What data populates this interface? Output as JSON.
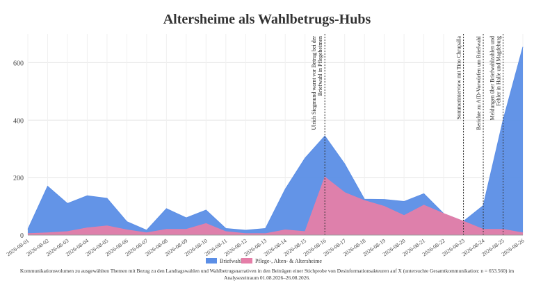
{
  "chart_data": {
    "type": "area",
    "title": "Altersheime als Wahlbetrugs-Hubs",
    "caption": "Kommunikationsvolumen zu ausgewählten Themen mit Bezug zu den Landtagswahlen und Wahlbetrugsnarrativen in den Beiträgen einer Stichprobe von Desinformationsakteuren auf X (untersuchte Gesamtkommunikation: n = 653.560) im Analysezeitraum 01.08.2026–26.08.2026.",
    "x": [
      "2026-08-01",
      "2026-08-02",
      "2026-08-03",
      "2026-08-04",
      "2026-08-05",
      "2026-08-06",
      "2026-08-07",
      "2026-08-08",
      "2026-08-09",
      "2026-08-10",
      "2026-08-11",
      "2026-08-12",
      "2026-08-13",
      "2026-08-14",
      "2026-08-15",
      "2026-08-16",
      "2026-08-17",
      "2026-08-18",
      "2026-08-19",
      "2026-08-20",
      "2026-08-21",
      "2026-08-22",
      "2026-08-23",
      "2026-08-24",
      "2026-08-25",
      "2026-08-26"
    ],
    "ylim": [
      0,
      700
    ],
    "yticks": [
      0,
      200,
      400,
      600
    ],
    "grid": true,
    "legend_position": "bottom-center",
    "series": [
      {
        "name": "Briefwahl",
        "color": "#5b8ee6",
        "values": [
          20,
          170,
          110,
          137,
          128,
          47,
          17,
          92,
          60,
          87,
          23,
          17,
          23,
          160,
          268,
          345,
          248,
          125,
          124,
          117,
          144,
          75,
          48,
          103,
          400,
          655
        ]
      },
      {
        "name": "Pflege-, Alten- & Altersheime",
        "color": "#e57ea8",
        "values": [
          5,
          8,
          12,
          25,
          32,
          18,
          8,
          20,
          20,
          40,
          12,
          5,
          5,
          18,
          12,
          202,
          148,
          120,
          100,
          68,
          104,
          75,
          48,
          20,
          20,
          8
        ]
      }
    ],
    "annotations": [
      {
        "x": "2026-08-16",
        "lines": [
          "Ulrich Siegmund warnt vor Betrug bei der",
          "Briefwahl in Pflegeheimen"
        ]
      },
      {
        "x": "2026-08-23",
        "lines": [
          "Sommerinterview mit Tino Chrupalla"
        ]
      },
      {
        "x": "2026-08-24",
        "lines": [
          "Berichte zu AfD-Vorwürfen um Briefwahl"
        ]
      },
      {
        "x": "2026-08-25",
        "lines": [
          "Meldungen über Briefwahlzahlen und",
          "Fehler in Halle und Magdeburg"
        ]
      }
    ]
  }
}
